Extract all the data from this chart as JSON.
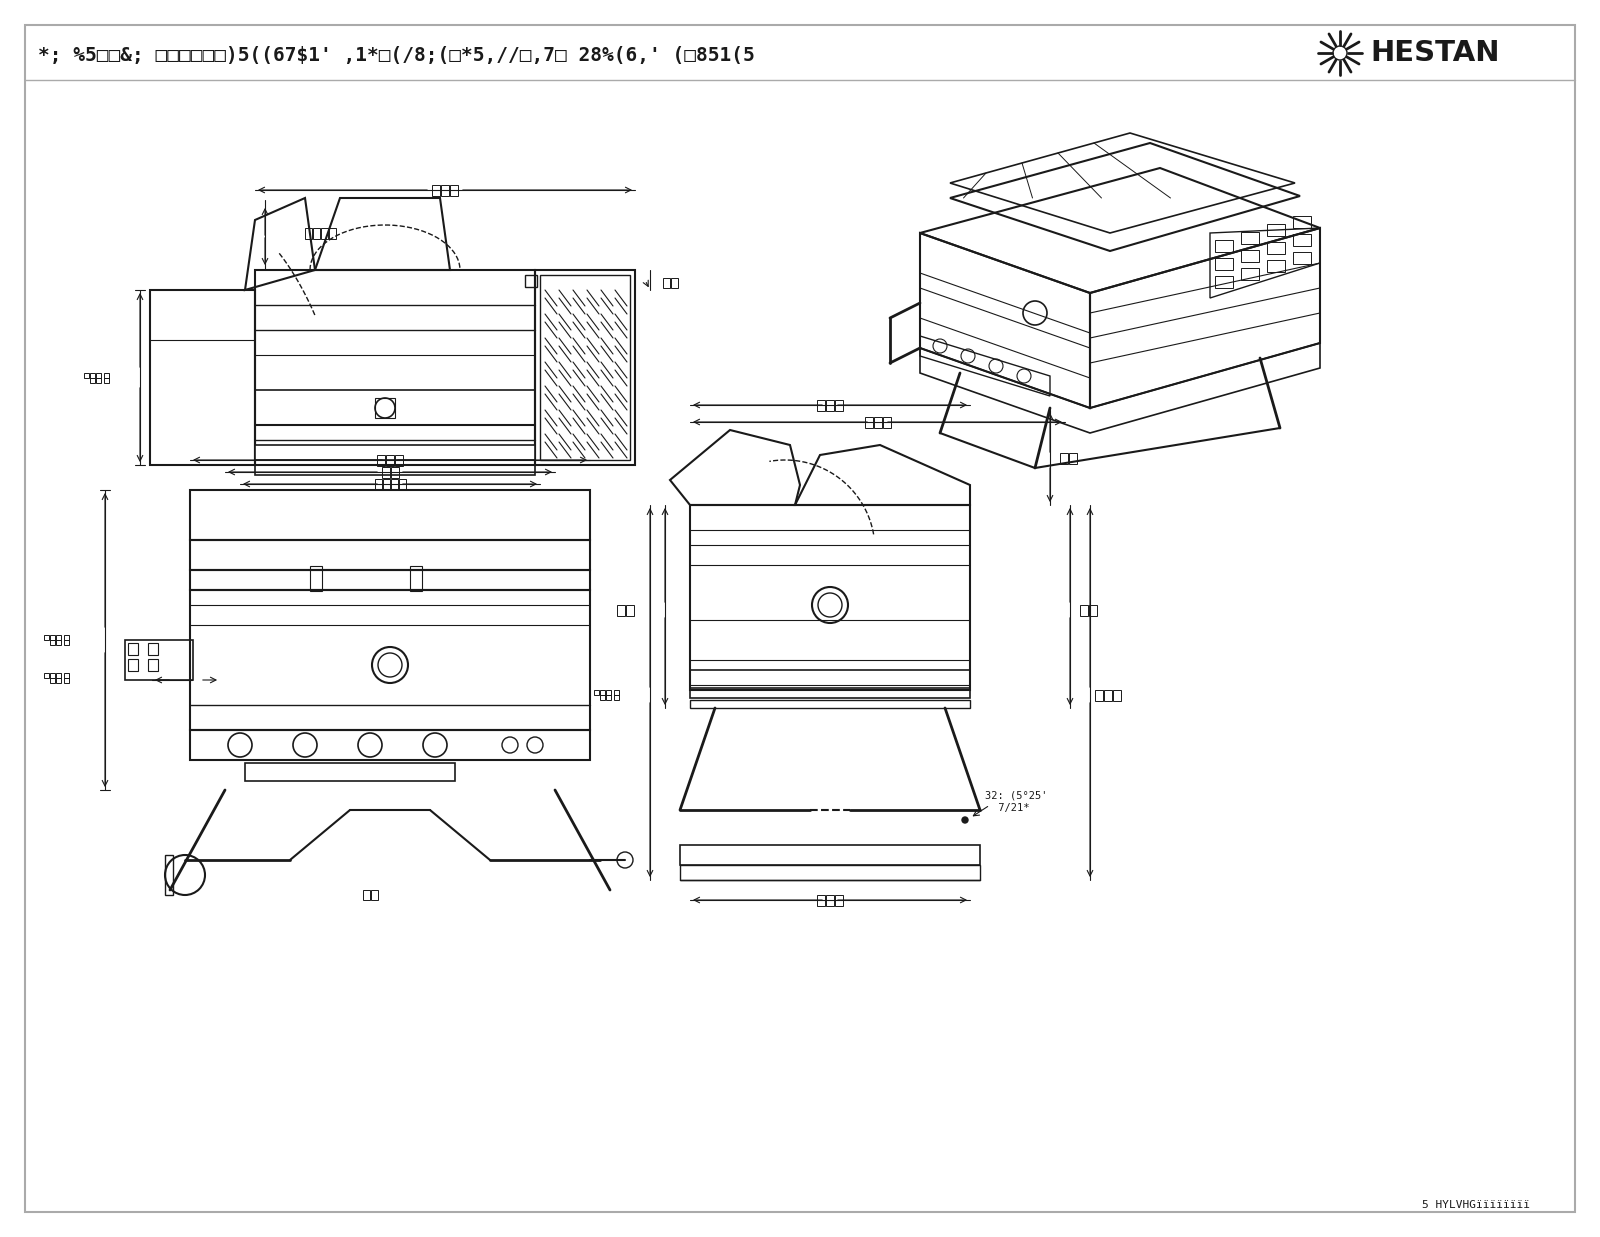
{
  "bg_color": "#ffffff",
  "border_color": "#999999",
  "line_color": "#1a1a1a",
  "dim_color": "#1a1a1a",
  "light_line": "#555555",
  "title_text": "*; %5□□&; □□□□□□)5((67$1' ,1*□(/8;(□*5,//□,7□ 28%(6,' (□851(5",
  "hestan_text": "HESTAN",
  "revised_text": "5 HYLVHGïïïïïïïï",
  "note1": "32: (5 25'",
  "note2": " 7/21*",
  "title_fontsize": 14,
  "small_fontsize": 7,
  "border_lw": 1.5
}
